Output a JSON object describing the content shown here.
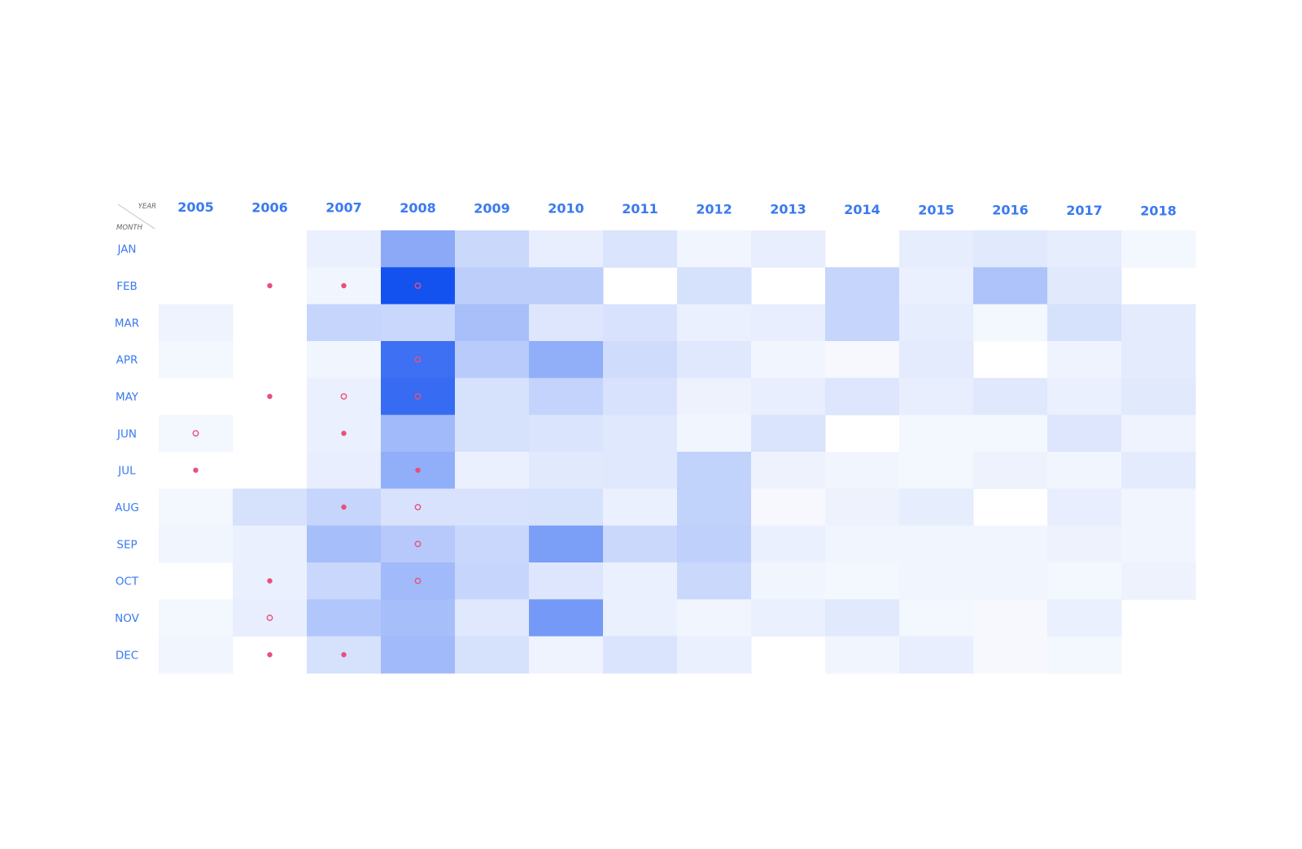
{
  "chart_data": {
    "type": "heatmap",
    "corner_labels": {
      "column_axis": "YEAR",
      "row_axis": "MONTH"
    },
    "years": [
      "2005",
      "2006",
      "2007",
      "2008",
      "2009",
      "2010",
      "2011",
      "2012",
      "2013",
      "2014",
      "2015",
      "2016",
      "2017",
      "2018"
    ],
    "months": [
      "JAN",
      "FEB",
      "MAR",
      "APR",
      "MAY",
      "JUN",
      "JUL",
      "AUG",
      "SEP",
      "OCT",
      "NOV",
      "DEC"
    ],
    "values": [
      [
        0.0,
        0.0,
        0.06,
        0.48,
        0.2,
        0.07,
        0.13,
        0.03,
        0.07,
        0.0,
        0.08,
        0.1,
        0.08,
        0.02
      ],
      [
        0.0,
        0.0,
        0.03,
        1.0,
        0.26,
        0.26,
        0.0,
        0.15,
        0.0,
        0.22,
        0.06,
        0.33,
        0.1,
        0.0
      ],
      [
        0.04,
        0.0,
        0.22,
        0.21,
        0.35,
        0.12,
        0.14,
        0.06,
        0.07,
        0.22,
        0.08,
        0.02,
        0.15,
        0.09
      ],
      [
        0.02,
        0.0,
        0.03,
        0.82,
        0.28,
        0.45,
        0.18,
        0.11,
        0.03,
        0.01,
        0.09,
        0.0,
        0.04,
        0.09
      ],
      [
        0.0,
        0.0,
        0.06,
        0.85,
        0.15,
        0.23,
        0.14,
        0.05,
        0.07,
        0.12,
        0.07,
        0.11,
        0.06,
        0.1
      ],
      [
        0.02,
        0.0,
        0.06,
        0.38,
        0.15,
        0.13,
        0.11,
        0.03,
        0.13,
        0.0,
        0.02,
        0.02,
        0.12,
        0.04
      ],
      [
        0.0,
        0.0,
        0.07,
        0.45,
        0.06,
        0.1,
        0.11,
        0.24,
        0.05,
        0.03,
        0.02,
        0.05,
        0.03,
        0.09
      ],
      [
        0.02,
        0.15,
        0.22,
        0.14,
        0.14,
        0.15,
        0.06,
        0.24,
        0.01,
        0.05,
        0.08,
        0.0,
        0.07,
        0.03
      ],
      [
        0.03,
        0.06,
        0.36,
        0.29,
        0.21,
        0.55,
        0.2,
        0.25,
        0.06,
        0.03,
        0.03,
        0.03,
        0.05,
        0.03
      ],
      [
        0.0,
        0.06,
        0.21,
        0.38,
        0.22,
        0.12,
        0.06,
        0.2,
        0.03,
        0.02,
        0.03,
        0.03,
        0.02,
        0.05
      ],
      [
        0.02,
        0.07,
        0.31,
        0.36,
        0.11,
        0.58,
        0.06,
        0.03,
        0.06,
        0.1,
        0.02,
        0.01,
        0.06,
        0.0
      ],
      [
        0.03,
        0.0,
        0.15,
        0.38,
        0.15,
        0.04,
        0.13,
        0.06,
        0.0,
        0.03,
        0.07,
        0.01,
        0.02,
        0.0
      ]
    ],
    "markers": [
      {
        "month": "FEB",
        "year": "2006",
        "style": "dot"
      },
      {
        "month": "FEB",
        "year": "2007",
        "style": "dot"
      },
      {
        "month": "FEB",
        "year": "2008",
        "style": "ring"
      },
      {
        "month": "APR",
        "year": "2008",
        "style": "ring"
      },
      {
        "month": "MAY",
        "year": "2006",
        "style": "dot"
      },
      {
        "month": "MAY",
        "year": "2007",
        "style": "ring"
      },
      {
        "month": "MAY",
        "year": "2008",
        "style": "ring"
      },
      {
        "month": "JUN",
        "year": "2005",
        "style": "ring"
      },
      {
        "month": "JUN",
        "year": "2007",
        "style": "dot"
      },
      {
        "month": "JUL",
        "year": "2005",
        "style": "dot"
      },
      {
        "month": "JUL",
        "year": "2008",
        "style": "dot"
      },
      {
        "month": "AUG",
        "year": "2007",
        "style": "dot"
      },
      {
        "month": "AUG",
        "year": "2008",
        "style": "ring"
      },
      {
        "month": "SEP",
        "year": "2008",
        "style": "ring"
      },
      {
        "month": "OCT",
        "year": "2006",
        "style": "dot"
      },
      {
        "month": "OCT",
        "year": "2008",
        "style": "ring"
      },
      {
        "month": "NOV",
        "year": "2006",
        "style": "ring"
      },
      {
        "month": "DEC",
        "year": "2006",
        "style": "dot"
      },
      {
        "month": "DEC",
        "year": "2007",
        "style": "dot"
      }
    ],
    "colors": {
      "label": "#3a7af0",
      "cell_low": "#f8fafe",
      "cell_high": "#1452f0",
      "marker": "#e8507a"
    },
    "legend": "none",
    "grid": false
  }
}
